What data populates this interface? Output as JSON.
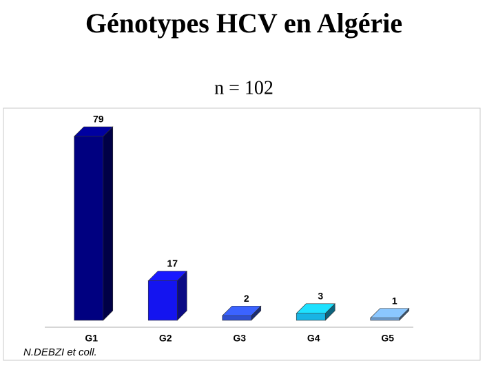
{
  "chart_data": {
    "type": "bar3d",
    "title": "Génotypes HCV en Algérie",
    "subtitle": "n = 102",
    "categories": [
      "G1",
      "G2",
      "G3",
      "G4",
      "G5"
    ],
    "values": [
      79,
      17,
      2,
      3,
      1
    ],
    "colors": [
      "#000080",
      "#1414f0",
      "#2f4fcf",
      "#18b4e4",
      "#6f9fd2"
    ],
    "footnote": "N.DEBZI   et coll."
  }
}
